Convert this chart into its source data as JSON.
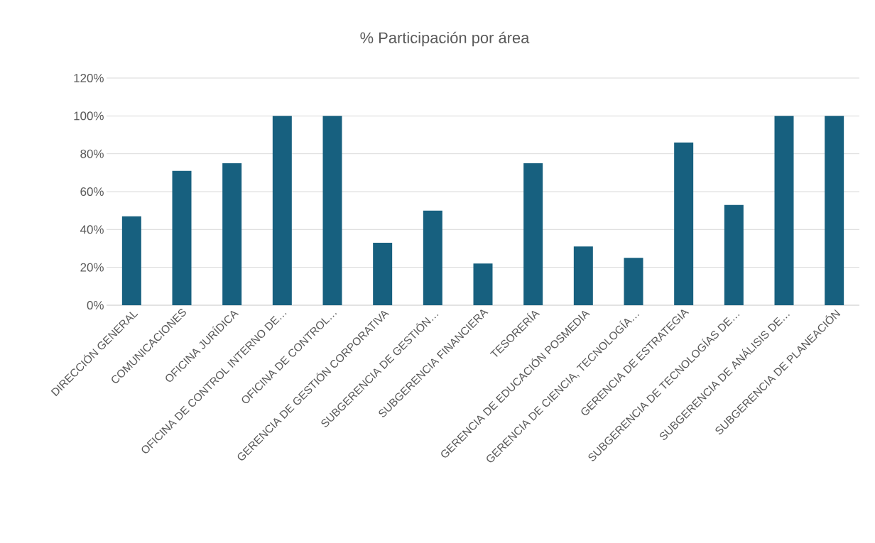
{
  "chart_data": {
    "type": "bar",
    "title": "% Participación por área",
    "categories": [
      "DIRECCIÓN GENERAL",
      "COMUNICACIONES",
      "OFICINA JURÍDICA",
      "OFICINA DE CONTROL INTERNO DE…",
      "OFICINA DE CONTROL…",
      "GERENCIA DE GESTIÓN CORPORATIVA",
      "SUBGERENCIA DE GESTIÓN…",
      "SUBGERENCIA FINANCIERA",
      "TESORERÍA",
      "GERENCIA DE EDUCACIÓN POSMEDIA",
      "GERENCIA DE CIENCIA, TECNOLOGÍA…",
      "GERENCIA DE ESTRATEGIA",
      "SUBGERENCIA DE TECNOLOGÍAS DE…",
      "SUBGERENCIA DE ANÁLISIS DE…",
      "SUBGERENCIA DE PLANEACIÓN"
    ],
    "values": [
      47,
      71,
      75,
      100,
      100,
      33,
      50,
      22,
      75,
      31,
      25,
      86,
      53,
      100,
      100
    ],
    "color": "#17607f",
    "ylim": [
      0,
      120
    ],
    "yticks": [
      {
        "value": 0,
        "label": "0%"
      },
      {
        "value": 20,
        "label": "20%"
      },
      {
        "value": 40,
        "label": "40%"
      },
      {
        "value": 60,
        "label": "60%"
      },
      {
        "value": 80,
        "label": "80%"
      },
      {
        "value": 100,
        "label": "100%"
      },
      {
        "value": 120,
        "label": "120%"
      }
    ],
    "grid": "y"
  }
}
